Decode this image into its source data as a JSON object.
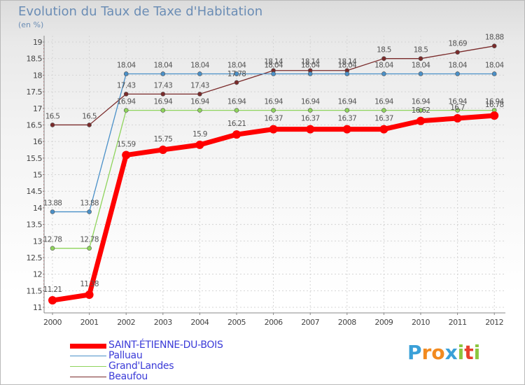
{
  "chart_data": {
    "type": "line",
    "title": "Evolution du Taux de Taxe d'Habitation",
    "ylabel": "(en %)",
    "xlabel": "",
    "categories": [
      "2000",
      "2001",
      "2002",
      "2003",
      "2004",
      "2005",
      "2006",
      "2007",
      "2008",
      "2009",
      "2010",
      "2011",
      "2012"
    ],
    "ylim": [
      11,
      19
    ],
    "yticks": [
      "11",
      "11.5",
      "12",
      "12.5",
      "13",
      "13.5",
      "14",
      "14.5",
      "15",
      "15.5",
      "16",
      "16.5",
      "17",
      "17.5",
      "18",
      "18.5",
      "19"
    ],
    "series": [
      {
        "name": "SAINT-ÉTIENNE-DU-BOIS",
        "color": "#ff0000",
        "values": [
          11.21,
          11.38,
          15.59,
          15.75,
          15.9,
          16.21,
          16.37,
          16.37,
          16.37,
          16.37,
          16.62,
          16.7,
          16.78
        ],
        "labels": [
          "11.21",
          "11.38",
          "15.59",
          "15.75",
          "15.9",
          "16.21",
          "16.37",
          "16.37",
          "16.37",
          "16.37",
          "16.62",
          "16.7",
          "16.78"
        ]
      },
      {
        "name": "Palluau",
        "color": "#4a90c8",
        "values": [
          13.88,
          13.88,
          18.04,
          18.04,
          18.04,
          18.04,
          18.04,
          18.04,
          18.04,
          18.04,
          18.04,
          18.04,
          18.04
        ],
        "labels": [
          "13.88",
          "13.88",
          "18.04",
          "18.04",
          "18.04",
          "18.04",
          "18.04",
          "18.04",
          "18.04",
          "18.04",
          "18.04",
          "18.04",
          "18.04"
        ]
      },
      {
        "name": "Grand'Landes",
        "color": "#8fd45c",
        "values": [
          12.78,
          12.78,
          16.94,
          16.94,
          16.94,
          16.94,
          16.94,
          16.94,
          16.94,
          16.94,
          16.94,
          16.94,
          16.94
        ],
        "labels": [
          "12.78",
          "12.78",
          "16.94",
          "16.94",
          "16.94",
          "16.94",
          "16.94",
          "16.94",
          "16.94",
          "16.94",
          "16.94",
          "16.94",
          "16.94"
        ]
      },
      {
        "name": "Beaufou",
        "color": "#7a2b2b",
        "values": [
          16.5,
          16.5,
          17.43,
          17.43,
          17.43,
          17.78,
          18.14,
          18.14,
          18.14,
          18.5,
          18.5,
          18.69,
          18.88
        ],
        "labels": [
          "16.5",
          "16.5",
          "17.43",
          "17.43",
          "17.43",
          "17.78",
          "18.14",
          "18.14",
          "18.14",
          "18.5",
          "18.5",
          "18.69",
          "18.88"
        ]
      }
    ],
    "legend_position": "bottom-left",
    "grid": true
  },
  "logo": {
    "letters": [
      "P",
      "r",
      "o",
      "x",
      "i",
      "t",
      "i"
    ],
    "colors": [
      "#3aa0d8",
      "#f28a1f",
      "#f28a1f",
      "#3aa0d8",
      "#8cc63f",
      "#e8412c",
      "#8cc63f"
    ]
  }
}
